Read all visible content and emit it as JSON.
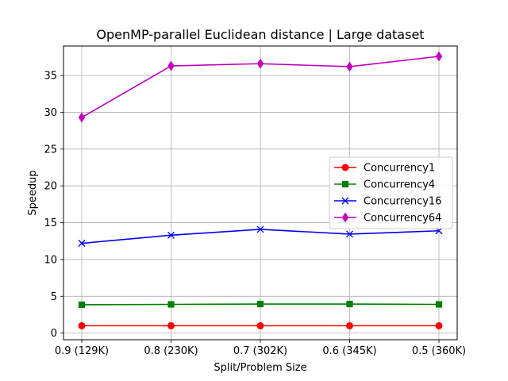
{
  "chart_data": {
    "type": "line",
    "title": "OpenMP-parallel Euclidean distance | Large dataset",
    "xlabel": "Split/Problem Size",
    "ylabel": "Speedup",
    "categories": [
      "0.9 (129K)",
      "0.8 (230K)",
      "0.7 (302K)",
      "0.6 (345K)",
      "0.5 (360K)"
    ],
    "ylim": [
      -0.9,
      39
    ],
    "yticks": [
      0,
      5,
      10,
      15,
      20,
      25,
      30,
      35
    ],
    "grid": true,
    "legend_position": "center-right",
    "series": [
      {
        "name": "Concurrency1",
        "color": "#ff0000",
        "marker": "circle",
        "values": [
          1.0,
          1.0,
          1.0,
          1.0,
          1.0
        ]
      },
      {
        "name": "Concurrency4",
        "color": "#008000",
        "marker": "square",
        "values": [
          3.85,
          3.9,
          3.95,
          3.95,
          3.9
        ]
      },
      {
        "name": "Concurrency16",
        "color": "#0000ff",
        "marker": "x",
        "values": [
          12.2,
          13.3,
          14.1,
          13.45,
          13.9
        ]
      },
      {
        "name": "Concurrency64",
        "color": "#bf00bf",
        "marker": "diamond",
        "values": [
          29.3,
          36.3,
          36.6,
          36.2,
          37.6
        ]
      }
    ]
  }
}
